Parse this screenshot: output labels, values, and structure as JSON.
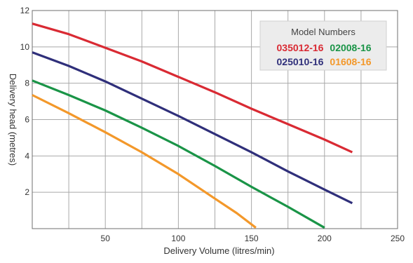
{
  "chart_data": {
    "type": "line",
    "title": "",
    "xlabel": "Delivery Volume (litres/min)",
    "ylabel": "Delivery head (metres)",
    "xlim": [
      0,
      250
    ],
    "ylim": [
      0,
      12
    ],
    "x_major_ticks": [
      50,
      100,
      150,
      200,
      250
    ],
    "y_major_ticks": [
      2,
      4,
      6,
      8,
      10,
      12
    ],
    "x_grid_step": 25,
    "y_grid_step": 2,
    "grid": true,
    "legend": {
      "title": "Model Numbers",
      "placement": "top-right"
    },
    "series": [
      {
        "name": "035012-16",
        "color": "#d92a33",
        "points": [
          [
            0,
            11.28
          ],
          [
            25,
            10.7
          ],
          [
            50,
            9.95
          ],
          [
            75,
            9.2
          ],
          [
            100,
            8.35
          ],
          [
            125,
            7.5
          ],
          [
            150,
            6.6
          ],
          [
            175,
            5.75
          ],
          [
            200,
            4.9
          ],
          [
            219,
            4.2
          ]
        ]
      },
      {
        "name": "02008-16",
        "color": "#1a9447",
        "points": [
          [
            0,
            8.15
          ],
          [
            25,
            7.35
          ],
          [
            50,
            6.5
          ],
          [
            75,
            5.55
          ],
          [
            100,
            4.55
          ],
          [
            125,
            3.45
          ],
          [
            150,
            2.3
          ],
          [
            175,
            1.2
          ],
          [
            200,
            0.05
          ]
        ]
      },
      {
        "name": "025010-16",
        "color": "#2f2f7a",
        "points": [
          [
            0,
            9.7
          ],
          [
            25,
            8.95
          ],
          [
            50,
            8.1
          ],
          [
            75,
            7.15
          ],
          [
            100,
            6.2
          ],
          [
            125,
            5.2
          ],
          [
            150,
            4.2
          ],
          [
            175,
            3.15
          ],
          [
            200,
            2.15
          ],
          [
            219,
            1.4
          ]
        ]
      },
      {
        "name": "01608-16",
        "color": "#f3982a",
        "points": [
          [
            0,
            7.35
          ],
          [
            25,
            6.35
          ],
          [
            50,
            5.3
          ],
          [
            75,
            4.2
          ],
          [
            100,
            3.0
          ],
          [
            125,
            1.65
          ],
          [
            140,
            0.85
          ],
          [
            153,
            0.05
          ]
        ]
      }
    ]
  }
}
